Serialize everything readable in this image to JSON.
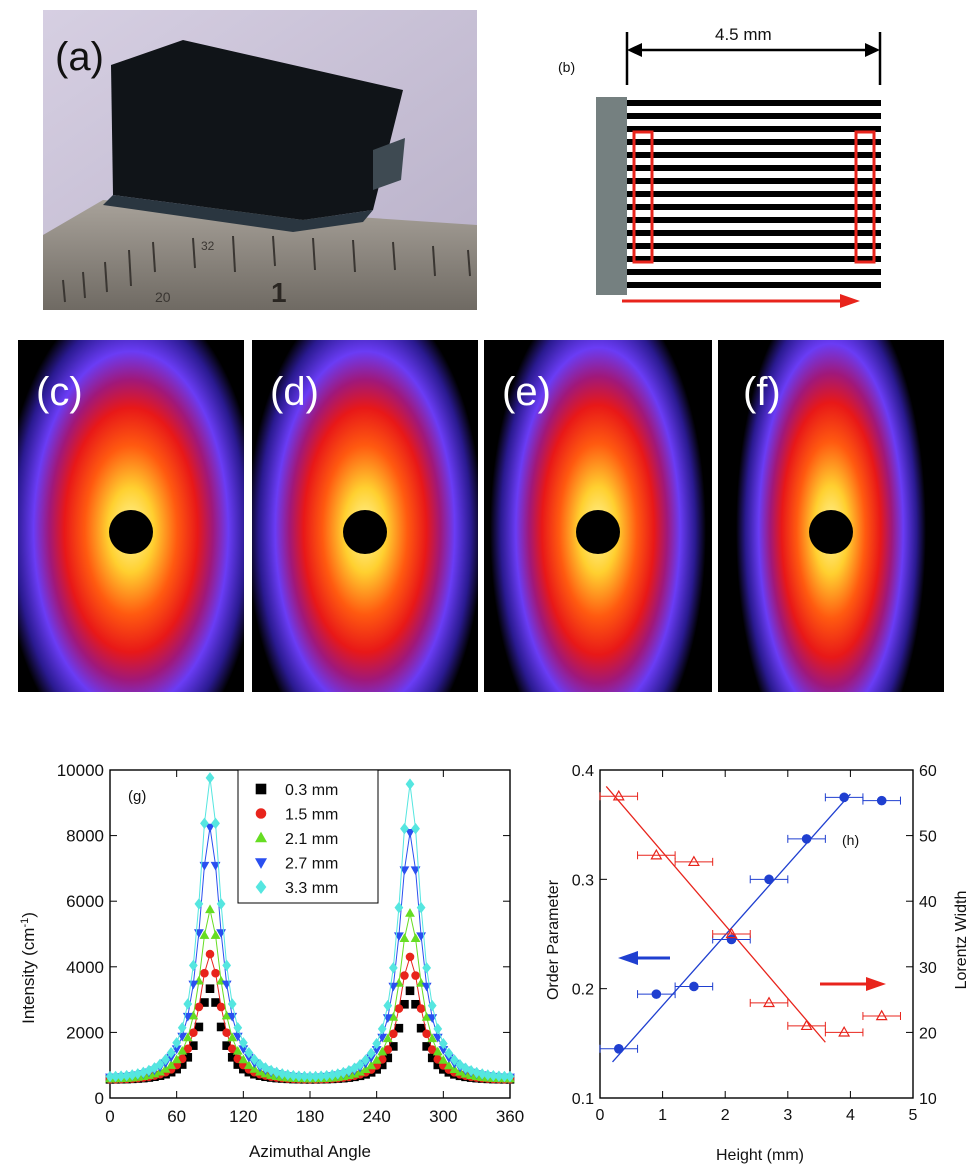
{
  "panels": {
    "a": {
      "label": "(a)",
      "ruler_marks": [
        "32",
        "20",
        "1"
      ]
    },
    "b": {
      "label": "(b)",
      "dimension": "4.5 mm"
    },
    "c": {
      "label": "(c)"
    },
    "d": {
      "label": "(d)"
    },
    "e": {
      "label": "(e)"
    },
    "f": {
      "label": "(f)"
    }
  },
  "colors": {
    "saxs_outer": "#5a3cff",
    "saxs_mid": "#ff1a00",
    "saxs_core": "#fff080",
    "red": "#e8241c",
    "blue": "#1f3fd0",
    "series_g": [
      "#000000",
      "#e8241c",
      "#66dd22",
      "#2a4ff0",
      "#55e6e0"
    ]
  },
  "chart_data": [
    {
      "type": "line",
      "panel_label": "(g)",
      "xlabel": "Azimuthal Angle",
      "ylabel": "Intensity (cm-1)",
      "xlim": [
        0,
        360
      ],
      "ylim": [
        0,
        10000
      ],
      "xticks": [
        "0",
        "60",
        "120",
        "180",
        "240",
        "300",
        "360"
      ],
      "yticks": [
        "0",
        "2000",
        "4000",
        "6000",
        "8000",
        "10000"
      ],
      "legend_position": "top-center",
      "series": [
        {
          "name": "0.3 mm",
          "marker": "square",
          "peak": 3200,
          "baseline": 1000
        },
        {
          "name": "1.5 mm",
          "marker": "circle",
          "peak": 4250,
          "baseline": 900
        },
        {
          "name": "2.1 mm",
          "marker": "triangle-up",
          "peak": 5600,
          "baseline": 800
        },
        {
          "name": "2.7 mm",
          "marker": "triangle-down",
          "peak": 8100,
          "baseline": 700
        },
        {
          "name": "3.3 mm",
          "marker": "diamond",
          "peak": 9600,
          "baseline": 600
        }
      ],
      "peak_positions": [
        90,
        270
      ]
    },
    {
      "type": "scatter",
      "panel_label": "(h)",
      "xlabel": "Height (mm)",
      "ylabel_left": "Order Parameter",
      "ylabel_right": "Lorentz Width",
      "xlim": [
        0,
        5
      ],
      "ylim_left": [
        0.1,
        0.4
      ],
      "ylim_right": [
        10,
        60
      ],
      "xticks": [
        "0",
        "1",
        "2",
        "3",
        "4",
        "5"
      ],
      "yticks_left": [
        "0.1",
        "0.2",
        "0.3",
        "0.4"
      ],
      "yticks_right": [
        "10",
        "20",
        "30",
        "40",
        "50",
        "60"
      ],
      "series": [
        {
          "axis": "left",
          "marker": "filled-circle",
          "x": [
            0.3,
            0.9,
            1.5,
            2.1,
            2.7,
            3.3,
            3.9,
            4.5
          ],
          "y": [
            0.145,
            0.195,
            0.202,
            0.245,
            0.3,
            0.337,
            0.375,
            0.372
          ],
          "xerr": 0.3
        },
        {
          "axis": "right",
          "marker": "open-triangle",
          "x": [
            0.3,
            0.9,
            1.5,
            2.1,
            2.7,
            3.3,
            3.9,
            4.5
          ],
          "y": [
            56,
            47,
            46,
            35,
            24.5,
            21,
            20,
            22.5
          ],
          "xerr": 0.3
        },
        {
          "axis": "left",
          "fit": "linear",
          "x": [
            0.2,
            4.0
          ],
          "y": [
            0.133,
            0.378
          ]
        },
        {
          "axis": "right",
          "fit": "linear",
          "x": [
            0.1,
            3.6
          ],
          "y": [
            57.5,
            18.5
          ]
        }
      ]
    }
  ]
}
